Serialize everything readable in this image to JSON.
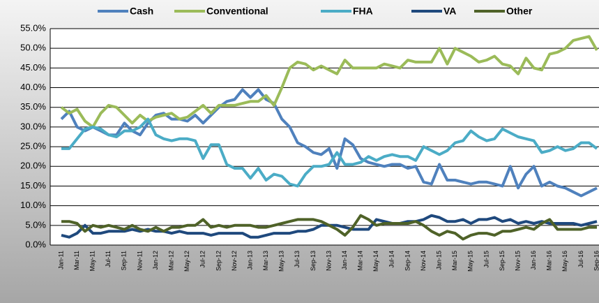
{
  "chart_data": {
    "type": "line",
    "categories": [
      "Jan-11",
      null,
      "Mar-11",
      null,
      "May-11",
      null,
      "Jul-11",
      null,
      "Sep-11",
      null,
      "Nov-11",
      null,
      "Jan-12",
      null,
      "Mar-12",
      null,
      "May-12",
      null,
      "Jul-12",
      null,
      "Sep-12",
      null,
      "Nov-12",
      null,
      "Jan-13",
      null,
      "Mar-13",
      null,
      "May-13",
      null,
      "Jul-13",
      null,
      "Sep-13",
      null,
      "Nov-13",
      null,
      "Jan-14",
      null,
      "Mar-14",
      null,
      "May-14",
      null,
      "Jul-14",
      null,
      "Sep-14",
      null,
      "Nov-14",
      null,
      "Jan-15",
      null,
      "Mar-15",
      null,
      "May-15",
      null,
      "Jul-15",
      null,
      "Sep-15",
      null,
      "Nov-15",
      null,
      "Jan-16",
      null,
      "Mar-16",
      null,
      "May-16",
      null,
      "Jul-16",
      null,
      "Sep-16"
    ],
    "series": [
      {
        "name": "Cash",
        "color": "#4f81bd",
        "values": [
          32,
          34,
          30,
          29,
          30,
          29,
          28,
          28,
          31,
          29,
          28,
          31,
          33,
          33.5,
          32,
          32,
          31.5,
          33,
          31,
          33,
          35,
          36.5,
          37,
          39.5,
          37.5,
          39.5,
          37,
          36,
          32,
          30,
          26,
          25,
          23.5,
          23,
          24.5,
          19.5,
          27,
          25.5,
          22,
          21,
          20.5,
          20,
          20.5,
          20.5,
          19.5,
          20,
          16,
          15.5,
          20.5,
          16.5,
          16.5,
          16,
          15.5,
          16,
          16,
          15.5,
          15,
          20,
          14.5,
          18,
          20,
          15,
          16,
          15,
          14.5,
          13.5,
          12.5,
          13.5,
          14.5
        ]
      },
      {
        "name": "Conventional",
        "color": "#9bbb59",
        "values": [
          35,
          33.5,
          34.5,
          31.5,
          30,
          33.5,
          35.5,
          35,
          33,
          31,
          33,
          31.5,
          32.5,
          33,
          33.5,
          32,
          32.5,
          34,
          35.5,
          33.5,
          35.5,
          35.5,
          35.5,
          36,
          36.5,
          36.5,
          38,
          35.5,
          40,
          45,
          46.5,
          46,
          44.5,
          45.5,
          44.5,
          43.5,
          47,
          45,
          45,
          45,
          45,
          46,
          45.5,
          45,
          47,
          46.5,
          46.5,
          46.5,
          50,
          46,
          50,
          49,
          48,
          46.5,
          47,
          48,
          46,
          45.5,
          43.5,
          47.5,
          45,
          44.5,
          48.5,
          49,
          50,
          52,
          52.5,
          53,
          49.5
        ]
      },
      {
        "name": "FHA",
        "color": "#4bacc6",
        "values": [
          24.5,
          24.5,
          27,
          29.5,
          30,
          29.5,
          28,
          27.5,
          29,
          29,
          30,
          32,
          28,
          27,
          26.5,
          27,
          27,
          26.5,
          22,
          25.5,
          25.5,
          20.5,
          19.5,
          19.5,
          17,
          19.5,
          16.5,
          18,
          17.5,
          15.5,
          15,
          18,
          20,
          20,
          20.5,
          23.5,
          20.5,
          20.5,
          21,
          22.5,
          21.5,
          22.5,
          23,
          22.5,
          22.5,
          21.5,
          25,
          24,
          23,
          24,
          26,
          26.5,
          29,
          27.5,
          26.5,
          27,
          29.5,
          28.5,
          27.5,
          27,
          26.5,
          23.5,
          24,
          25,
          24,
          24.5,
          26,
          26,
          24.5
        ]
      },
      {
        "name": "VA",
        "color": "#1f497d",
        "values": [
          2.5,
          2,
          3,
          5,
          3,
          3,
          3.5,
          3.5,
          3.5,
          4,
          3.5,
          4,
          3.5,
          3.5,
          3,
          3.5,
          3,
          3,
          3,
          2.5,
          3,
          3,
          3,
          3,
          2,
          2,
          2.5,
          3,
          3,
          3,
          3.5,
          3.5,
          4,
          5,
          5,
          5,
          4.5,
          4,
          4,
          4,
          6.5,
          6,
          5.5,
          5.5,
          6,
          6,
          6.5,
          7.5,
          7,
          6,
          6,
          6.5,
          5.5,
          6.5,
          6.5,
          7,
          6,
          6.5,
          5.5,
          6,
          5.5,
          6,
          5.5,
          5.5,
          5.5,
          5.5,
          5,
          5.5,
          6
        ]
      },
      {
        "name": "Other",
        "color": "#4f6228",
        "values": [
          6,
          6,
          5.5,
          3.5,
          5,
          4.5,
          5,
          4.5,
          4,
          5,
          4,
          3.5,
          4.5,
          3.5,
          4.5,
          4.5,
          5,
          5,
          6.5,
          4.5,
          5,
          4.5,
          5,
          5,
          5,
          4.5,
          4.5,
          5,
          5.5,
          6,
          6.5,
          6.5,
          6.5,
          6,
          5,
          4,
          2.5,
          4.5,
          7.5,
          6.5,
          5,
          5.5,
          5.5,
          5.5,
          5.5,
          6,
          5,
          3.5,
          2.5,
          3.5,
          3,
          1.5,
          2.5,
          3,
          3,
          2.5,
          3.5,
          3.5,
          4,
          4.5,
          4,
          5.5,
          6.5,
          4,
          4,
          4,
          4,
          4.5,
          4.5
        ]
      }
    ],
    "ylim": [
      0,
      55
    ],
    "yticks": [
      {
        "value": 0,
        "label": "0.0%"
      },
      {
        "value": 5,
        "label": "5.0%"
      },
      {
        "value": 10,
        "label": "10.0%"
      },
      {
        "value": 15,
        "label": "15.0%"
      },
      {
        "value": 20,
        "label": "20.0%"
      },
      {
        "value": 25,
        "label": "25.0%"
      },
      {
        "value": 30,
        "label": "30.0%"
      },
      {
        "value": 35,
        "label": "35.0%"
      },
      {
        "value": 40,
        "label": "40.0%"
      },
      {
        "value": 45,
        "label": "45.0%"
      },
      {
        "value": 50,
        "label": "50.0%"
      },
      {
        "value": 55,
        "label": "55.0%"
      }
    ],
    "grid": true,
    "legend": "top"
  }
}
